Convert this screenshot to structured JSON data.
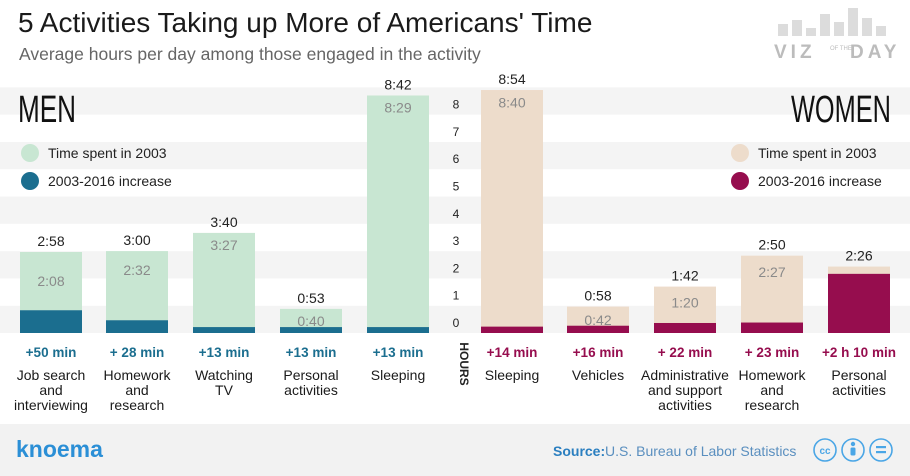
{
  "title": "5 Activities Taking up More of Americans' Time",
  "subtitle": "Average hours per day among those engaged in the activity",
  "logo": {
    "line1": "VIZ",
    "small": "OF THE",
    "line2": "DAY"
  },
  "brand": "knoema",
  "source": {
    "label": "Source:",
    "text": "U.S. Bureau of Labor Statistics"
  },
  "license_icons": [
    "cc-icon",
    "person-icon",
    "equal-icon"
  ],
  "colors": {
    "men_base": "#c8e6d2",
    "men_increase": "#1b6e8f",
    "women_base": "#eddccb",
    "women_increase": "#960d4e",
    "men_text": "#1b6e8f",
    "women_text": "#960d4e"
  },
  "chart_data": {
    "type": "bar",
    "ylabel": "HOURS",
    "ylim": [
      0,
      8.7
    ],
    "yticks": [
      "0",
      "1",
      "2",
      "3",
      "4",
      "5",
      "6",
      "7",
      "8"
    ],
    "men": {
      "title": "MEN",
      "legend": [
        "Time spent in 2003",
        "2003-2016 increase"
      ],
      "categories": [
        [
          "Job search",
          "and",
          "interviewing"
        ],
        [
          "Homework",
          "and",
          "research"
        ],
        [
          "Watching",
          "TV"
        ],
        [
          "Personal",
          "activities"
        ],
        [
          "Sleeping"
        ]
      ],
      "base_values": [
        2.1333,
        2.5333,
        3.45,
        0.6667,
        8.4833
      ],
      "total_values": [
        2.9667,
        3.0,
        3.6667,
        0.8833,
        8.7
      ],
      "base_labels": [
        "2:08",
        "2:32",
        "3:27",
        "0:40",
        "8:29"
      ],
      "total_labels": [
        "2:58",
        "3:00",
        "3:40",
        "0:53",
        "8:42"
      ],
      "increase_labels": [
        "+50 min",
        "+ 28 min",
        "+13 min",
        "+13 min",
        "+13 min"
      ]
    },
    "women": {
      "title": "WOMEN",
      "legend": [
        "Time spent in 2003",
        "2003-2016 increase"
      ],
      "categories": [
        [
          "Sleeping"
        ],
        [
          "Vehicles"
        ],
        [
          "Administrative",
          "and support",
          "activities"
        ],
        [
          "Homework",
          "and",
          "research"
        ],
        [
          "Personal",
          "activities"
        ]
      ],
      "base_values": [
        8.6667,
        0.7,
        1.3333,
        2.45,
        0.2667
      ],
      "total_values": [
        8.9,
        0.9667,
        1.7,
        2.8333,
        2.4333
      ],
      "base_labels": [
        "8:40",
        "0:42",
        "1:20",
        "2:27",
        ""
      ],
      "total_labels": [
        "8:54",
        "0:58",
        "1:42",
        "2:50",
        "2:26"
      ],
      "increase_labels": [
        "+14 min",
        "+16 min",
        "+ 22 min",
        "+ 23 min",
        "+2 h 10 min"
      ]
    }
  }
}
